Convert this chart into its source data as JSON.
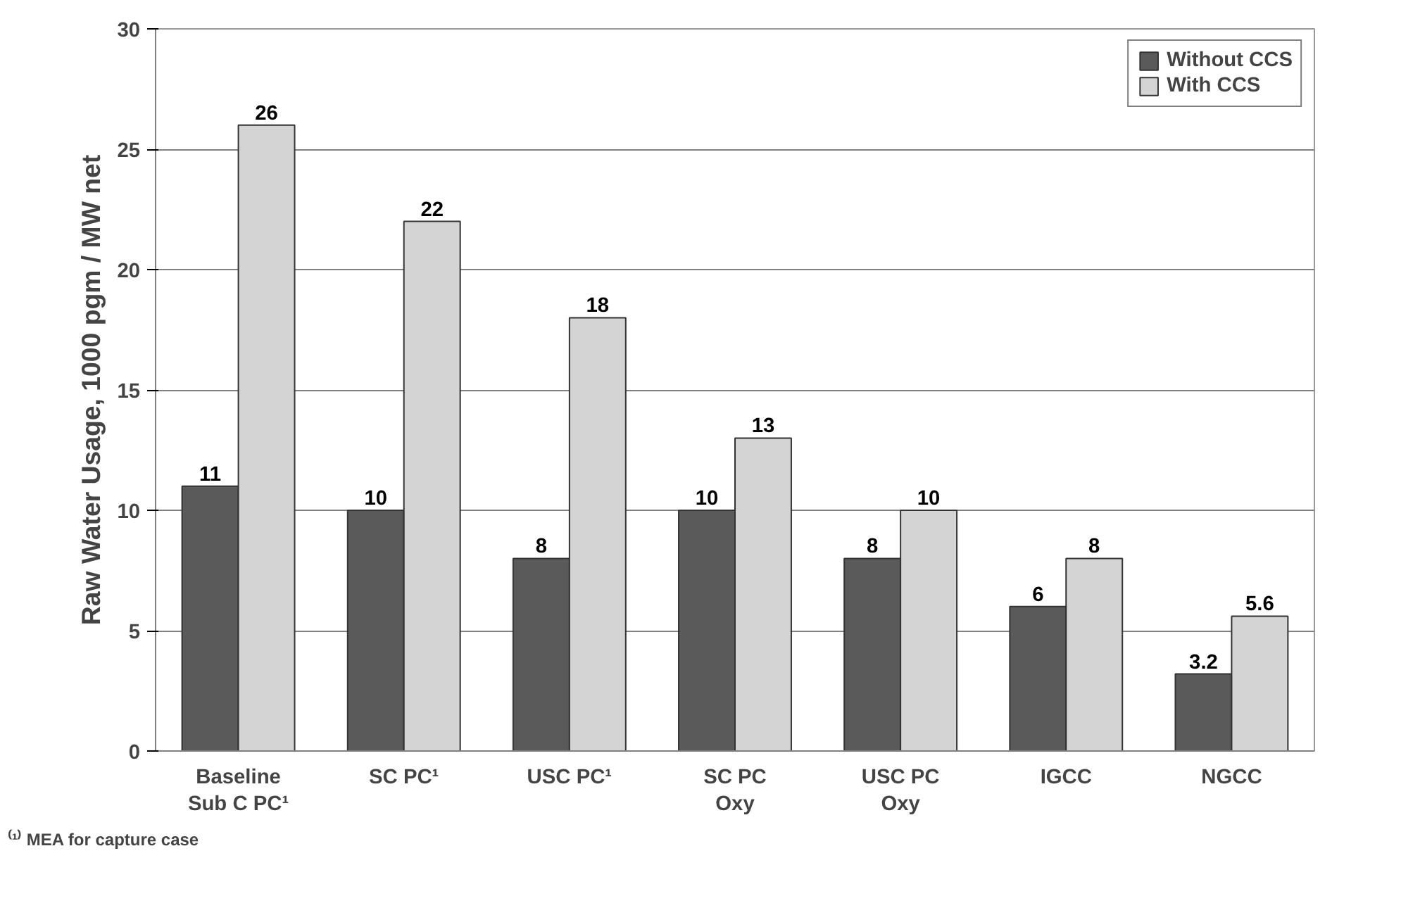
{
  "chart_data": {
    "type": "bar",
    "ylabel": "Raw Water Usage, 1000 pgm / MW net",
    "categories": [
      "Baseline\nSub C PC¹",
      "SC PC¹",
      "USC PC¹",
      "SC PC\nOxy",
      "USC PC\nOxy",
      "IGCC",
      "NGCC"
    ],
    "series": [
      {
        "name": "Without CCS",
        "color": "#5a5a5a",
        "values": [
          11,
          10,
          8,
          10,
          8,
          6,
          3.2
        ]
      },
      {
        "name": "With CCS",
        "color": "#d4d4d4",
        "values": [
          26,
          22,
          18,
          13,
          10,
          8,
          5.6
        ]
      }
    ],
    "ylim": [
      0,
      30
    ],
    "yticks": [
      0,
      5,
      10,
      15,
      20,
      25,
      30
    ],
    "grid": "y",
    "legend": "top right",
    "data_labels": true,
    "annotations": [
      "⁽¹⁾ MEA for capture case"
    ]
  }
}
